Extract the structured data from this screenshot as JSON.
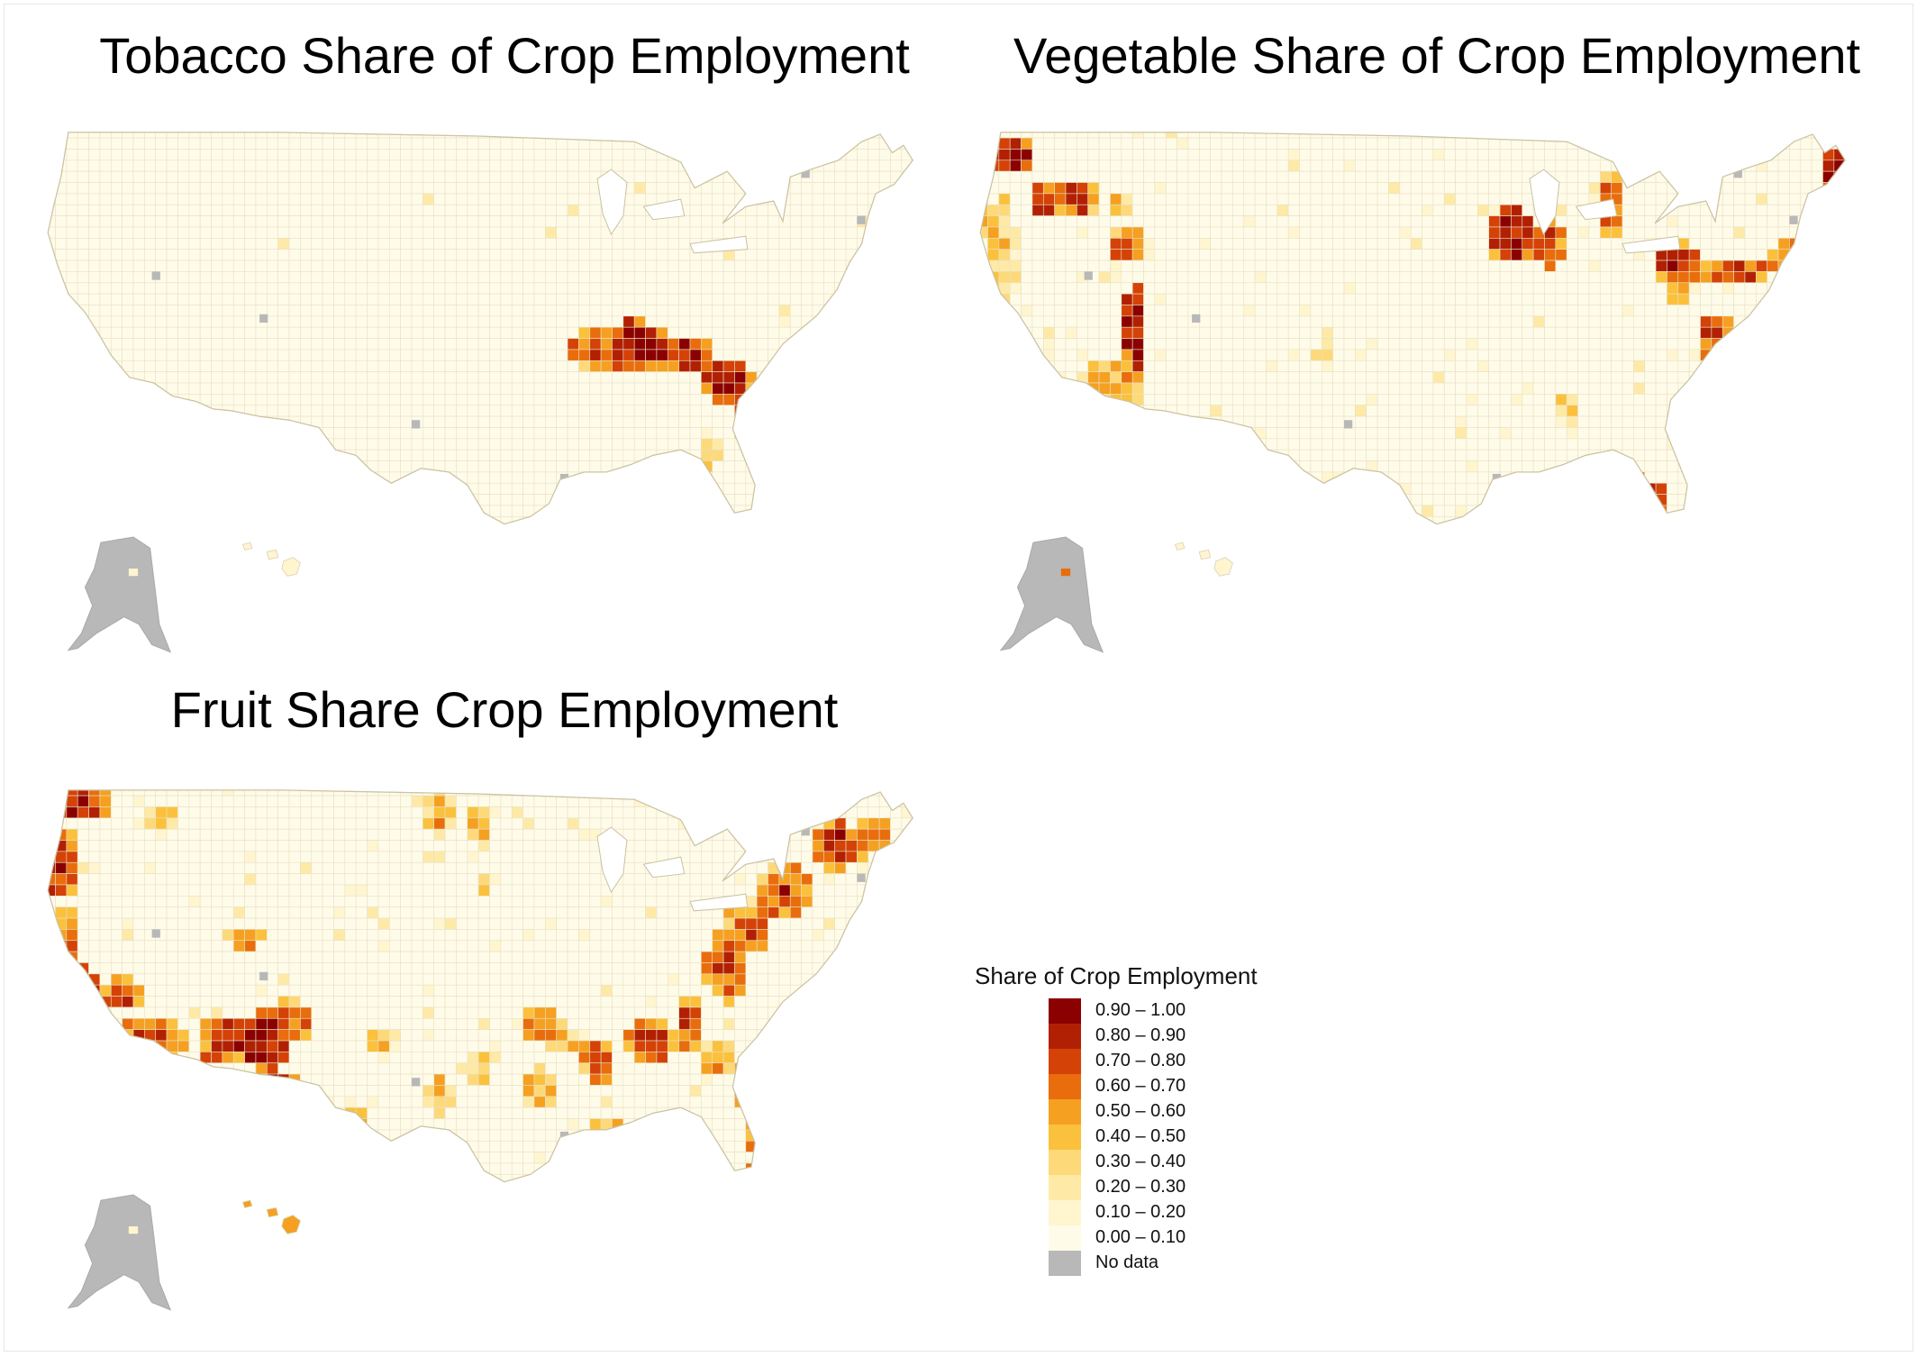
{
  "panels": [
    {
      "id": "tobacco",
      "title": "Tobacco Share of Crop Employment"
    },
    {
      "id": "vegetable",
      "title": "Vegetable Share of Crop Employment"
    },
    {
      "id": "fruit",
      "title": "Fruit Share Crop Employment"
    }
  ],
  "legend": {
    "title": "Share of Crop Employment",
    "items": [
      {
        "label": "0.90 – 1.00",
        "color": "#8b0000"
      },
      {
        "label": "0.80 – 0.90",
        "color": "#b22004"
      },
      {
        "label": "0.70 – 0.80",
        "color": "#d44208"
      },
      {
        "label": "0.60 – 0.70",
        "color": "#e96d0c"
      },
      {
        "label": "0.50 – 0.60",
        "color": "#f6a021"
      },
      {
        "label": "0.40 – 0.50",
        "color": "#fbc13c"
      },
      {
        "label": "0.30 – 0.40",
        "color": "#fdd97a"
      },
      {
        "label": "0.20 – 0.30",
        "color": "#feeaa6"
      },
      {
        "label": "0.10 – 0.20",
        "color": "#fff5cf"
      },
      {
        "label": "0.00 – 0.10",
        "color": "#fffbe9"
      },
      {
        "label": "No data",
        "color": "#b8b8b8"
      }
    ]
  }
}
